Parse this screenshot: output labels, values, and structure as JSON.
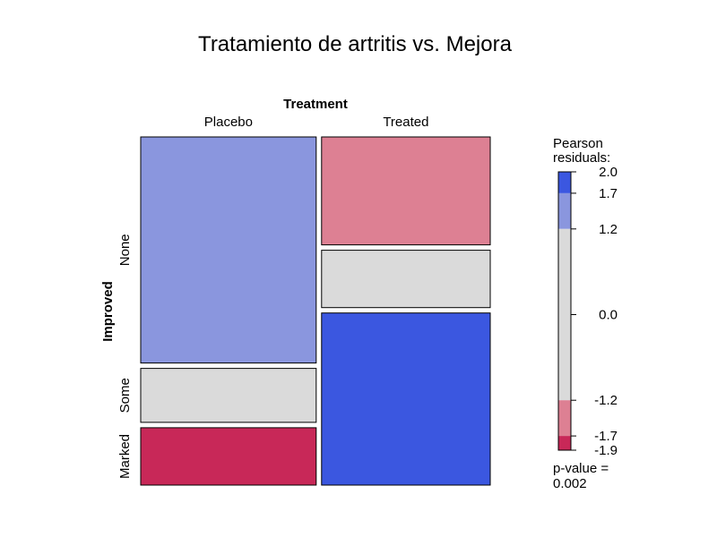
{
  "chart_data": {
    "type": "mosaic",
    "title": "Tratamiento de artritis vs. Mejora",
    "column_variable": "Treatment",
    "row_variable": "Improved",
    "columns": [
      "Placebo",
      "Treated"
    ],
    "rows": [
      "None",
      "Some",
      "Marked"
    ],
    "cells": [
      {
        "column": "Placebo",
        "row": "None",
        "proportion": 0.67,
        "residual": 1.5,
        "color": "#8A96DE"
      },
      {
        "column": "Placebo",
        "row": "Some",
        "proportion": 0.16,
        "residual": 0.0,
        "color": "#DADADA"
      },
      {
        "column": "Placebo",
        "row": "Marked",
        "proportion": 0.17,
        "residual": -1.9,
        "color": "#C82858"
      },
      {
        "column": "Treated",
        "row": "None",
        "proportion": 0.32,
        "residual": -1.5,
        "color": "#DD8093"
      },
      {
        "column": "Treated",
        "row": "Some",
        "proportion": 0.17,
        "residual": 0.0,
        "color": "#DADADA"
      },
      {
        "column": "Treated",
        "row": "Marked",
        "proportion": 0.51,
        "residual": 2.0,
        "color": "#3B57E0"
      }
    ],
    "column_proportions": [
      0.51,
      0.49
    ],
    "legend": {
      "title_line1": "Pearson",
      "title_line2": "residuals:",
      "ticks": [
        "2.0",
        "1.7",
        "1.2",
        "0.0",
        "-1.2",
        "-1.7",
        "-1.9"
      ],
      "tick_values": [
        2.0,
        1.7,
        1.2,
        0.0,
        -1.2,
        -1.7,
        -1.9
      ],
      "range": [
        -1.9,
        2.0
      ],
      "bands": [
        {
          "from": 1.7,
          "to": 2.0,
          "color": "#3B57E0"
        },
        {
          "from": 1.2,
          "to": 1.7,
          "color": "#8A96DE"
        },
        {
          "from": -1.2,
          "to": 1.2,
          "color": "#DADADA"
        },
        {
          "from": -1.7,
          "to": -1.2,
          "color": "#DD8093"
        },
        {
          "from": -1.9,
          "to": -1.7,
          "color": "#C82858"
        }
      ],
      "pvalue_line1": "p-value =",
      "pvalue_line2": "0.002"
    }
  }
}
